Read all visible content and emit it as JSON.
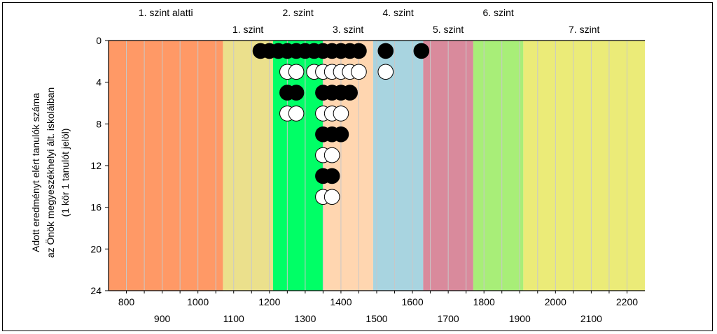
{
  "chart_data": {
    "type": "scatter",
    "subtype": "dot-plot",
    "ylabel_lines": [
      "Adott eredményt elért tanulók száma",
      "az Önök megyeszékhelyi ált. iskoláiban",
      "(1 kör 1 tanulót jelöl)"
    ],
    "xlim": [
      750,
      2250
    ],
    "ylim": [
      0,
      24
    ],
    "y_inverted": true,
    "x_ticks_upper": [
      800,
      1000,
      1200,
      1400,
      1600,
      1800,
      2000,
      2200
    ],
    "x_ticks_lower": [
      900,
      1100,
      1300,
      1500,
      1700,
      1900,
      2100
    ],
    "y_ticks": [
      0,
      4,
      8,
      12,
      16,
      20,
      24
    ],
    "vertical_gridlines_every": 50,
    "levels": [
      {
        "label": "1. szint alatti",
        "from": 750,
        "to": 1070,
        "color": "#ff9966",
        "label_row": "top"
      },
      {
        "label": "1. szint",
        "from": 1070,
        "to": 1210,
        "color": "#ebe08c",
        "label_row": "bottom"
      },
      {
        "label": "2. szint",
        "from": 1210,
        "to": 1350,
        "color": "#00ff66",
        "label_row": "top"
      },
      {
        "label": "3. szint",
        "from": 1350,
        "to": 1490,
        "color": "#ffd6b0",
        "label_row": "bottom"
      },
      {
        "label": "4. szint",
        "from": 1490,
        "to": 1630,
        "color": "#a8d4e0",
        "label_row": "top"
      },
      {
        "label": "5. szint",
        "from": 1630,
        "to": 1770,
        "color": "#d98a9c",
        "label_row": "bottom"
      },
      {
        "label": "6. szint",
        "from": 1770,
        "to": 1910,
        "color": "#a8ee78",
        "label_row": "top"
      },
      {
        "label": "7. szint",
        "from": 1910,
        "to": 2250,
        "color": "#ebeb78",
        "label_row": "bottom"
      }
    ],
    "bin_width": 25,
    "columns": [
      {
        "x": 1175,
        "count": 1
      },
      {
        "x": 1200,
        "count": 1
      },
      {
        "x": 1225,
        "count": 1
      },
      {
        "x": 1250,
        "count": 4
      },
      {
        "x": 1275,
        "count": 4
      },
      {
        "x": 1300,
        "count": 1
      },
      {
        "x": 1325,
        "count": 2
      },
      {
        "x": 1350,
        "count": 8
      },
      {
        "x": 1375,
        "count": 8
      },
      {
        "x": 1400,
        "count": 5
      },
      {
        "x": 1425,
        "count": 3
      },
      {
        "x": 1450,
        "count": 2
      },
      {
        "x": 1525,
        "count": 2
      },
      {
        "x": 1625,
        "count": 1
      }
    ],
    "column_offset_note": "",
    "marker_colors": {
      "odd": "#000000",
      "even": "#ffffff"
    }
  }
}
